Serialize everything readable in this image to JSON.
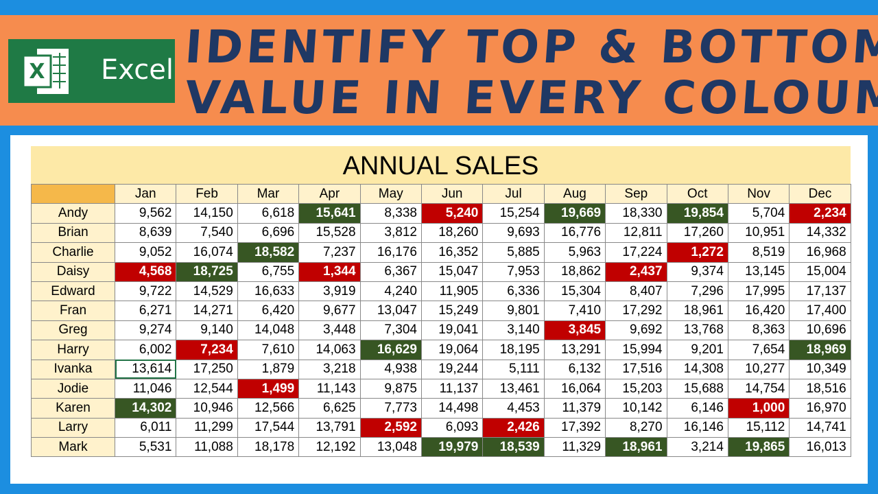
{
  "header": {
    "title_line1": "IDENTIFY TOP & BOTTOM",
    "title_line2": "VALUE IN EVERY COLOUMN"
  },
  "logo": {
    "text": "Excel"
  },
  "table": {
    "title": "ANNUAL SALES",
    "columns": [
      "Jan",
      "Feb",
      "Mar",
      "Apr",
      "May",
      "Jun",
      "Jul",
      "Aug",
      "Sep",
      "Oct",
      "Nov",
      "Dec"
    ],
    "top_color": "#375623",
    "bottom_color": "#c00000",
    "rows": [
      {
        "name": "Andy",
        "values": [
          "9,562",
          "14,150",
          "6,618",
          "15,641",
          "8,338",
          "5,240",
          "15,254",
          "19,669",
          "18,330",
          "19,854",
          "5,704",
          "2,234"
        ]
      },
      {
        "name": "Brian",
        "values": [
          "8,639",
          "7,540",
          "6,696",
          "15,528",
          "3,812",
          "18,260",
          "9,693",
          "16,776",
          "12,811",
          "17,260",
          "10,951",
          "14,332"
        ]
      },
      {
        "name": "Charlie",
        "values": [
          "9,052",
          "16,074",
          "18,582",
          "7,237",
          "16,176",
          "16,352",
          "5,885",
          "5,963",
          "17,224",
          "1,272",
          "8,519",
          "16,968"
        ]
      },
      {
        "name": "Daisy",
        "values": [
          "4,568",
          "18,725",
          "6,755",
          "1,344",
          "6,367",
          "15,047",
          "7,953",
          "18,862",
          "2,437",
          "9,374",
          "13,145",
          "15,004"
        ]
      },
      {
        "name": "Edward",
        "values": [
          "9,722",
          "14,529",
          "16,633",
          "3,919",
          "4,240",
          "11,905",
          "6,336",
          "15,304",
          "8,407",
          "7,296",
          "17,995",
          "17,137"
        ]
      },
      {
        "name": "Fran",
        "values": [
          "6,271",
          "14,271",
          "6,420",
          "9,677",
          "13,047",
          "15,249",
          "9,801",
          "7,410",
          "17,292",
          "18,961",
          "16,420",
          "17,400"
        ]
      },
      {
        "name": "Greg",
        "values": [
          "9,274",
          "9,140",
          "14,048",
          "3,448",
          "7,304",
          "19,041",
          "3,140",
          "3,845",
          "9,692",
          "13,768",
          "8,363",
          "10,696"
        ]
      },
      {
        "name": "Harry",
        "values": [
          "6,002",
          "7,234",
          "7,610",
          "14,063",
          "16,629",
          "19,064",
          "18,195",
          "13,291",
          "15,994",
          "9,201",
          "7,654",
          "18,969"
        ]
      },
      {
        "name": "Ivanka",
        "values": [
          "13,614",
          "17,250",
          "1,879",
          "3,218",
          "4,938",
          "19,244",
          "5,111",
          "6,132",
          "17,516",
          "14,308",
          "10,277",
          "10,349"
        ]
      },
      {
        "name": "Jodie",
        "values": [
          "11,046",
          "12,544",
          "1,499",
          "11,143",
          "9,875",
          "11,137",
          "13,461",
          "16,064",
          "15,203",
          "15,688",
          "14,754",
          "18,516"
        ]
      },
      {
        "name": "Karen",
        "values": [
          "14,302",
          "10,946",
          "12,566",
          "6,625",
          "7,773",
          "14,498",
          "4,453",
          "11,379",
          "10,142",
          "6,146",
          "1,000",
          "16,970"
        ]
      },
      {
        "name": "Larry",
        "values": [
          "6,011",
          "11,299",
          "17,544",
          "13,791",
          "2,592",
          "6,093",
          "2,426",
          "17,392",
          "8,270",
          "16,146",
          "15,112",
          "14,741"
        ]
      },
      {
        "name": "Mark",
        "values": [
          "5,531",
          "11,088",
          "18,178",
          "12,192",
          "13,048",
          "19,979",
          "18,539",
          "11,329",
          "18,961",
          "3,214",
          "19,865",
          "16,013"
        ]
      }
    ]
  }
}
